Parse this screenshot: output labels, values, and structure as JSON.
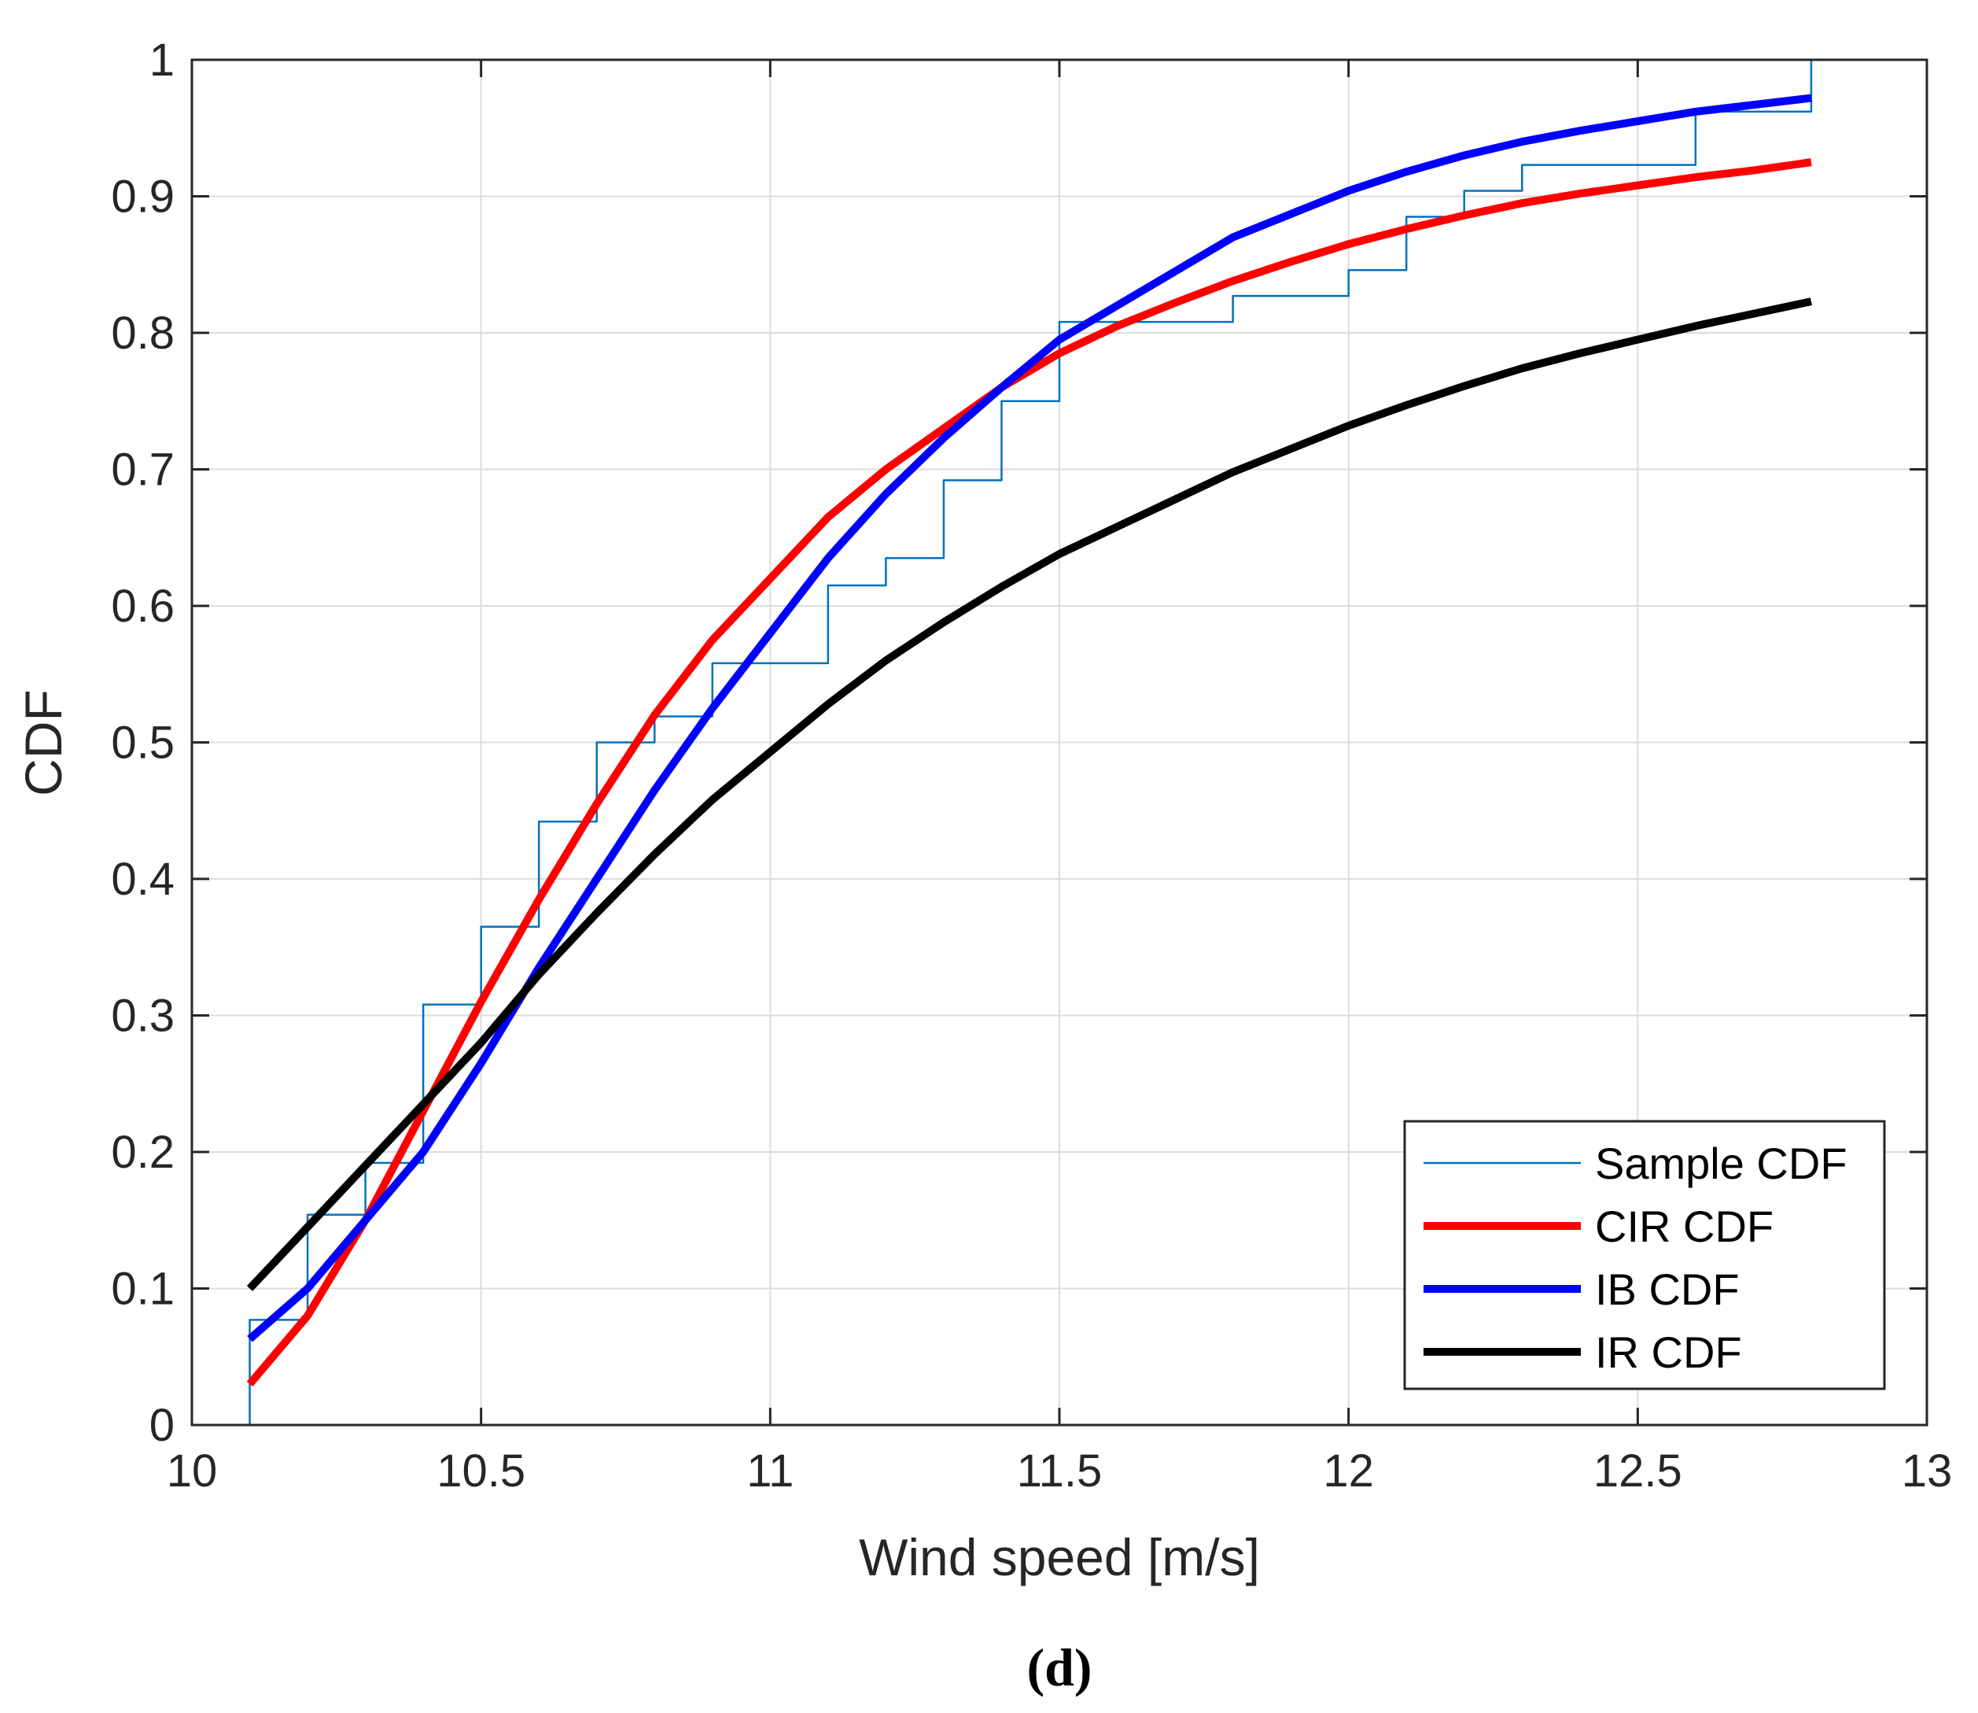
{
  "chart_data": {
    "type": "line",
    "title": "",
    "xlabel": "Wind speed [m/s]",
    "ylabel": "CDF",
    "caption": "(d)",
    "xlim": [
      10,
      13
    ],
    "ylim": [
      0,
      1
    ],
    "grid": true,
    "xticks": [
      10,
      10.5,
      11,
      11.5,
      12,
      12.5,
      13
    ],
    "xtick_labels": [
      "10",
      "10.5",
      "11",
      "11.5",
      "12",
      "12.5",
      "13"
    ],
    "yticks": [
      0,
      0.1,
      0.2,
      0.3,
      0.4,
      0.5,
      0.6,
      0.7,
      0.8,
      0.9,
      1
    ],
    "ytick_labels": [
      "0",
      "0.1",
      "0.2",
      "0.3",
      "0.4",
      "0.5",
      "0.6",
      "0.7",
      "0.8",
      "0.9",
      "1"
    ],
    "legend_position": "bottom-right",
    "series": [
      {
        "name": "Sample CDF",
        "style": "stairs",
        "color": "#0072BD",
        "width": "thin",
        "x": [
          10.1,
          10.2,
          10.3,
          10.4,
          10.5,
          10.6,
          10.7,
          10.8,
          10.9,
          11.1,
          11.2,
          11.3,
          11.4,
          11.5,
          11.8,
          12.0,
          12.1,
          12.2,
          12.3,
          12.6,
          12.8
        ],
        "y": [
          0.077,
          0.154,
          0.192,
          0.308,
          0.365,
          0.442,
          0.5,
          0.519,
          0.558,
          0.615,
          0.635,
          0.692,
          0.75,
          0.808,
          0.827,
          0.846,
          0.885,
          0.904,
          0.923,
          0.962,
          1.0
        ]
      },
      {
        "name": "CIR CDF",
        "style": "line",
        "color": "#FF0000",
        "width": "thick",
        "x": [
          10.1,
          10.2,
          10.3,
          10.4,
          10.5,
          10.6,
          10.7,
          10.8,
          10.9,
          11.0,
          11.1,
          11.2,
          11.3,
          11.4,
          11.5,
          11.6,
          11.7,
          11.8,
          11.9,
          12.0,
          12.1,
          12.2,
          12.3,
          12.4,
          12.5,
          12.6,
          12.7,
          12.8
        ],
        "y": [
          0.03,
          0.08,
          0.15,
          0.23,
          0.31,
          0.385,
          0.455,
          0.52,
          0.575,
          0.62,
          0.665,
          0.7,
          0.73,
          0.76,
          0.785,
          0.805,
          0.822,
          0.838,
          0.852,
          0.865,
          0.876,
          0.886,
          0.895,
          0.902,
          0.908,
          0.914,
          0.919,
          0.925
        ]
      },
      {
        "name": "IB CDF",
        "style": "line",
        "color": "#0000FF",
        "width": "thick",
        "x": [
          10.1,
          10.2,
          10.3,
          10.4,
          10.5,
          10.6,
          10.7,
          10.8,
          10.9,
          11.0,
          11.1,
          11.2,
          11.3,
          11.4,
          11.5,
          11.6,
          11.7,
          11.8,
          11.9,
          12.0,
          12.1,
          12.2,
          12.3,
          12.4,
          12.5,
          12.6,
          12.7,
          12.8
        ],
        "y": [
          0.063,
          0.1,
          0.15,
          0.2,
          0.265,
          0.335,
          0.4,
          0.465,
          0.525,
          0.58,
          0.635,
          0.682,
          0.723,
          0.76,
          0.795,
          0.82,
          0.845,
          0.87,
          0.887,
          0.904,
          0.918,
          0.93,
          0.94,
          0.948,
          0.955,
          0.962,
          0.967,
          0.972
        ]
      },
      {
        "name": "IR CDF",
        "style": "line",
        "color": "#000000",
        "width": "thick",
        "x": [
          10.1,
          10.2,
          10.3,
          10.4,
          10.5,
          10.6,
          10.7,
          10.8,
          10.9,
          11.0,
          11.1,
          11.2,
          11.3,
          11.4,
          11.5,
          11.6,
          11.7,
          11.8,
          11.9,
          12.0,
          12.1,
          12.2,
          12.3,
          12.4,
          12.5,
          12.6,
          12.7,
          12.8
        ],
        "y": [
          0.1,
          0.145,
          0.19,
          0.235,
          0.28,
          0.33,
          0.375,
          0.418,
          0.458,
          0.493,
          0.528,
          0.56,
          0.588,
          0.614,
          0.638,
          0.658,
          0.678,
          0.698,
          0.715,
          0.732,
          0.747,
          0.761,
          0.774,
          0.785,
          0.795,
          0.805,
          0.814,
          0.823
        ]
      }
    ]
  }
}
